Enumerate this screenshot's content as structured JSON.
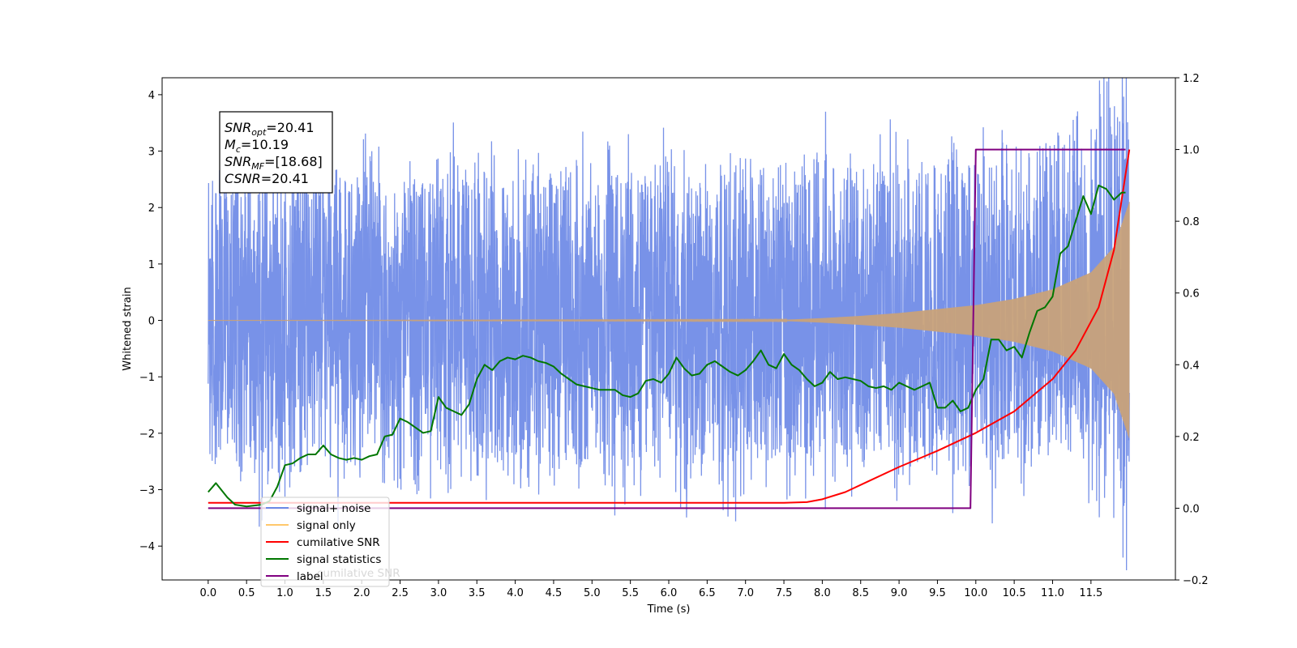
{
  "chart_data": {
    "type": "line",
    "xlabel": "Time (s)",
    "ylabel": "Whitened strain",
    "ylabel_right": "",
    "xlim": [
      -0.6,
      12.6
    ],
    "ylim": [
      -4.6,
      4.3
    ],
    "ylim_right": [
      -0.2,
      1.2
    ],
    "x_ticks": [
      "0.0",
      "0.5",
      "1.0",
      "1.5",
      "2.0",
      "2.5",
      "3.0",
      "3.5",
      "4.0",
      "4.5",
      "5.0",
      "5.5",
      "6.0",
      "6.5",
      "7.0",
      "7.5",
      "8.0",
      "8.5",
      "9.0",
      "9.5",
      "10.0",
      "10.5",
      "11.0",
      "11.5"
    ],
    "y_ticks": [
      "4",
      "3",
      "2",
      "1",
      "0",
      "−1",
      "−2",
      "−3",
      "−4"
    ],
    "y_ticks_right": [
      "1.2",
      "1.0",
      "0.8",
      "0.6",
      "0.4",
      "0.2",
      "0.0",
      "−0.2"
    ],
    "annotation": {
      "lines": [
        {
          "sym": "SNR",
          "sub": "opt",
          "rest": "=20.41"
        },
        {
          "sym": "M",
          "sub": "c",
          "rest": "=10.19"
        },
        {
          "sym": "SNR",
          "sub": "MF",
          "rest": "=[18.68]"
        },
        {
          "sym": "CSNR",
          "sub": "",
          "rest": "=20.41"
        }
      ]
    },
    "legend": {
      "placement": "lower-left",
      "entries": [
        {
          "label": "signal+ noise",
          "color": "#6c89e6"
        },
        {
          "label": "signal only",
          "color": "#ffc86b"
        },
        {
          "label": "cumilative SNR",
          "color": "#ff0000"
        },
        {
          "label": "signal statistics",
          "color": "#007700"
        },
        {
          "label": "label",
          "color": "#800080"
        }
      ],
      "hidden_text": "cumilative SNR"
    },
    "series": [
      {
        "name": "signal+ noise",
        "axis": "left",
        "color": "#6c89e6",
        "description_x": [
          0,
          12
        ],
        "envelope_y": [
          -2.0,
          2.1
        ],
        "max_spike": 3.9,
        "min_spike": -4.1
      },
      {
        "name": "signal only",
        "axis": "left",
        "color": "#c8a27a",
        "x": [
          0,
          7.5,
          8.0,
          8.5,
          9.0,
          9.5,
          10.0,
          10.5,
          11.0,
          11.5,
          11.8,
          12.0
        ],
        "amplitude": [
          0,
          0.01,
          0.04,
          0.08,
          0.13,
          0.2,
          0.27,
          0.38,
          0.55,
          0.85,
          1.3,
          2.1
        ]
      },
      {
        "name": "cumilative SNR",
        "axis": "right",
        "color": "#ff0000",
        "x": [
          0,
          7.5,
          7.8,
          8.0,
          8.3,
          8.6,
          9.0,
          9.5,
          10.0,
          10.5,
          11.0,
          11.3,
          11.6,
          11.8,
          12.0
        ],
        "values": [
          0.015,
          0.015,
          0.017,
          0.025,
          0.045,
          0.075,
          0.115,
          0.16,
          0.21,
          0.27,
          0.36,
          0.44,
          0.56,
          0.72,
          1.0
        ]
      },
      {
        "name": "signal statistics",
        "axis": "right",
        "color": "#007700",
        "x": [
          0.0,
          0.1,
          0.25,
          0.35,
          0.5,
          0.7,
          0.8,
          0.9,
          1.0,
          1.1,
          1.2,
          1.3,
          1.4,
          1.5,
          1.6,
          1.7,
          1.8,
          1.9,
          2.0,
          2.1,
          2.2,
          2.3,
          2.4,
          2.5,
          2.6,
          2.7,
          2.8,
          2.9,
          3.0,
          3.1,
          3.2,
          3.3,
          3.4,
          3.5,
          3.6,
          3.7,
          3.8,
          3.9,
          4.0,
          4.1,
          4.2,
          4.3,
          4.4,
          4.5,
          4.6,
          4.7,
          4.8,
          4.9,
          5.0,
          5.1,
          5.2,
          5.3,
          5.4,
          5.5,
          5.6,
          5.7,
          5.8,
          5.9,
          6.0,
          6.1,
          6.2,
          6.3,
          6.4,
          6.5,
          6.6,
          6.7,
          6.8,
          6.9,
          7.0,
          7.1,
          7.2,
          7.3,
          7.4,
          7.5,
          7.6,
          7.7,
          7.8,
          7.9,
          8.0,
          8.1,
          8.2,
          8.3,
          8.4,
          8.5,
          8.6,
          8.7,
          8.8,
          8.9,
          9.0,
          9.1,
          9.2,
          9.3,
          9.4,
          9.5,
          9.6,
          9.7,
          9.8,
          9.9,
          10.0,
          10.1,
          10.2,
          10.3,
          10.4,
          10.5,
          10.6,
          10.7,
          10.8,
          10.9,
          11.0,
          11.1,
          11.2,
          11.3,
          11.4,
          11.5,
          11.6,
          11.7,
          11.8,
          11.9,
          11.95
        ],
        "values": [
          0.045,
          0.07,
          0.03,
          0.01,
          0.005,
          0.01,
          0.02,
          0.06,
          0.12,
          0.125,
          0.14,
          0.15,
          0.15,
          0.175,
          0.15,
          0.14,
          0.135,
          0.14,
          0.135,
          0.145,
          0.15,
          0.2,
          0.205,
          0.25,
          0.24,
          0.225,
          0.21,
          0.215,
          0.31,
          0.28,
          0.27,
          0.26,
          0.29,
          0.36,
          0.4,
          0.385,
          0.41,
          0.42,
          0.415,
          0.425,
          0.42,
          0.41,
          0.405,
          0.395,
          0.375,
          0.36,
          0.345,
          0.34,
          0.335,
          0.33,
          0.33,
          0.33,
          0.315,
          0.31,
          0.32,
          0.355,
          0.36,
          0.35,
          0.375,
          0.42,
          0.39,
          0.37,
          0.375,
          0.4,
          0.41,
          0.395,
          0.38,
          0.37,
          0.385,
          0.41,
          0.44,
          0.4,
          0.39,
          0.43,
          0.4,
          0.385,
          0.36,
          0.34,
          0.35,
          0.38,
          0.36,
          0.365,
          0.36,
          0.355,
          0.34,
          0.335,
          0.34,
          0.33,
          0.35,
          0.34,
          0.33,
          0.34,
          0.35,
          0.28,
          0.28,
          0.3,
          0.27,
          0.28,
          0.33,
          0.36,
          0.47,
          0.47,
          0.44,
          0.45,
          0.42,
          0.49,
          0.55,
          0.56,
          0.59,
          0.71,
          0.73,
          0.8,
          0.87,
          0.82,
          0.9,
          0.89,
          0.86,
          0.88,
          0.88
        ]
      },
      {
        "name": "label",
        "axis": "right",
        "color": "#800080",
        "x": [
          0,
          9.93,
          9.93,
          10.0,
          11.95
        ],
        "values": [
          0.0,
          0.0,
          0.0,
          1.0,
          1.0
        ]
      }
    ]
  }
}
